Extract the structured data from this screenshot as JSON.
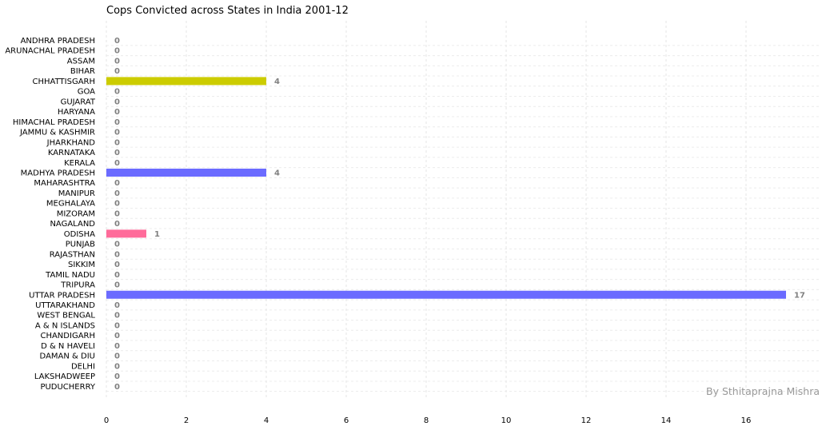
{
  "chart_data": {
    "type": "bar",
    "orientation": "horizontal",
    "title": "Cops Convicted across States in India 2001-12",
    "credit": "By Sthitaprajna Mishra",
    "xlabel": "",
    "ylabel": "",
    "xlim": [
      0,
      17.8
    ],
    "xticks": [
      0,
      2,
      4,
      6,
      8,
      10,
      12,
      14,
      16
    ],
    "grid": true,
    "categories": [
      "ANDHRA PRADESH",
      "ARUNACHAL PRADESH",
      "ASSAM",
      "BIHAR",
      "CHHATTISGARH",
      "GOA",
      "GUJARAT",
      "HARYANA",
      "HIMACHAL PRADESH",
      "JAMMU & KASHMIR",
      "JHARKHAND",
      "KARNATAKA",
      "KERALA",
      "MADHYA PRADESH",
      "MAHARASHTRA",
      "MANIPUR",
      "MEGHALAYA",
      "MIZORAM",
      "NAGALAND",
      "ODISHA",
      "PUNJAB",
      "RAJASTHAN",
      "SIKKIM",
      "TAMIL NADU",
      "TRIPURA",
      "UTTAR PRADESH",
      "UTTARAKHAND",
      "WEST BENGAL",
      "A & N ISLANDS",
      "CHANDIGARH",
      "D & N HAVELI",
      "DAMAN & DIU",
      "DELHI",
      "LAKSHADWEEP",
      "PUDUCHERRY"
    ],
    "values": [
      0,
      0,
      0,
      0,
      4,
      0,
      0,
      0,
      0,
      0,
      0,
      0,
      0,
      4,
      0,
      0,
      0,
      0,
      0,
      1,
      0,
      0,
      0,
      0,
      0,
      17,
      0,
      0,
      0,
      0,
      0,
      0,
      0,
      0,
      0
    ],
    "bar_colors": {
      "CHHATTISGARH": "#cccc00",
      "MADHYA PRADESH": "#6b6bff",
      "ODISHA": "#ff6b9a",
      "UTTAR PRADESH": "#6b6bff"
    },
    "label_color": "#808080"
  }
}
